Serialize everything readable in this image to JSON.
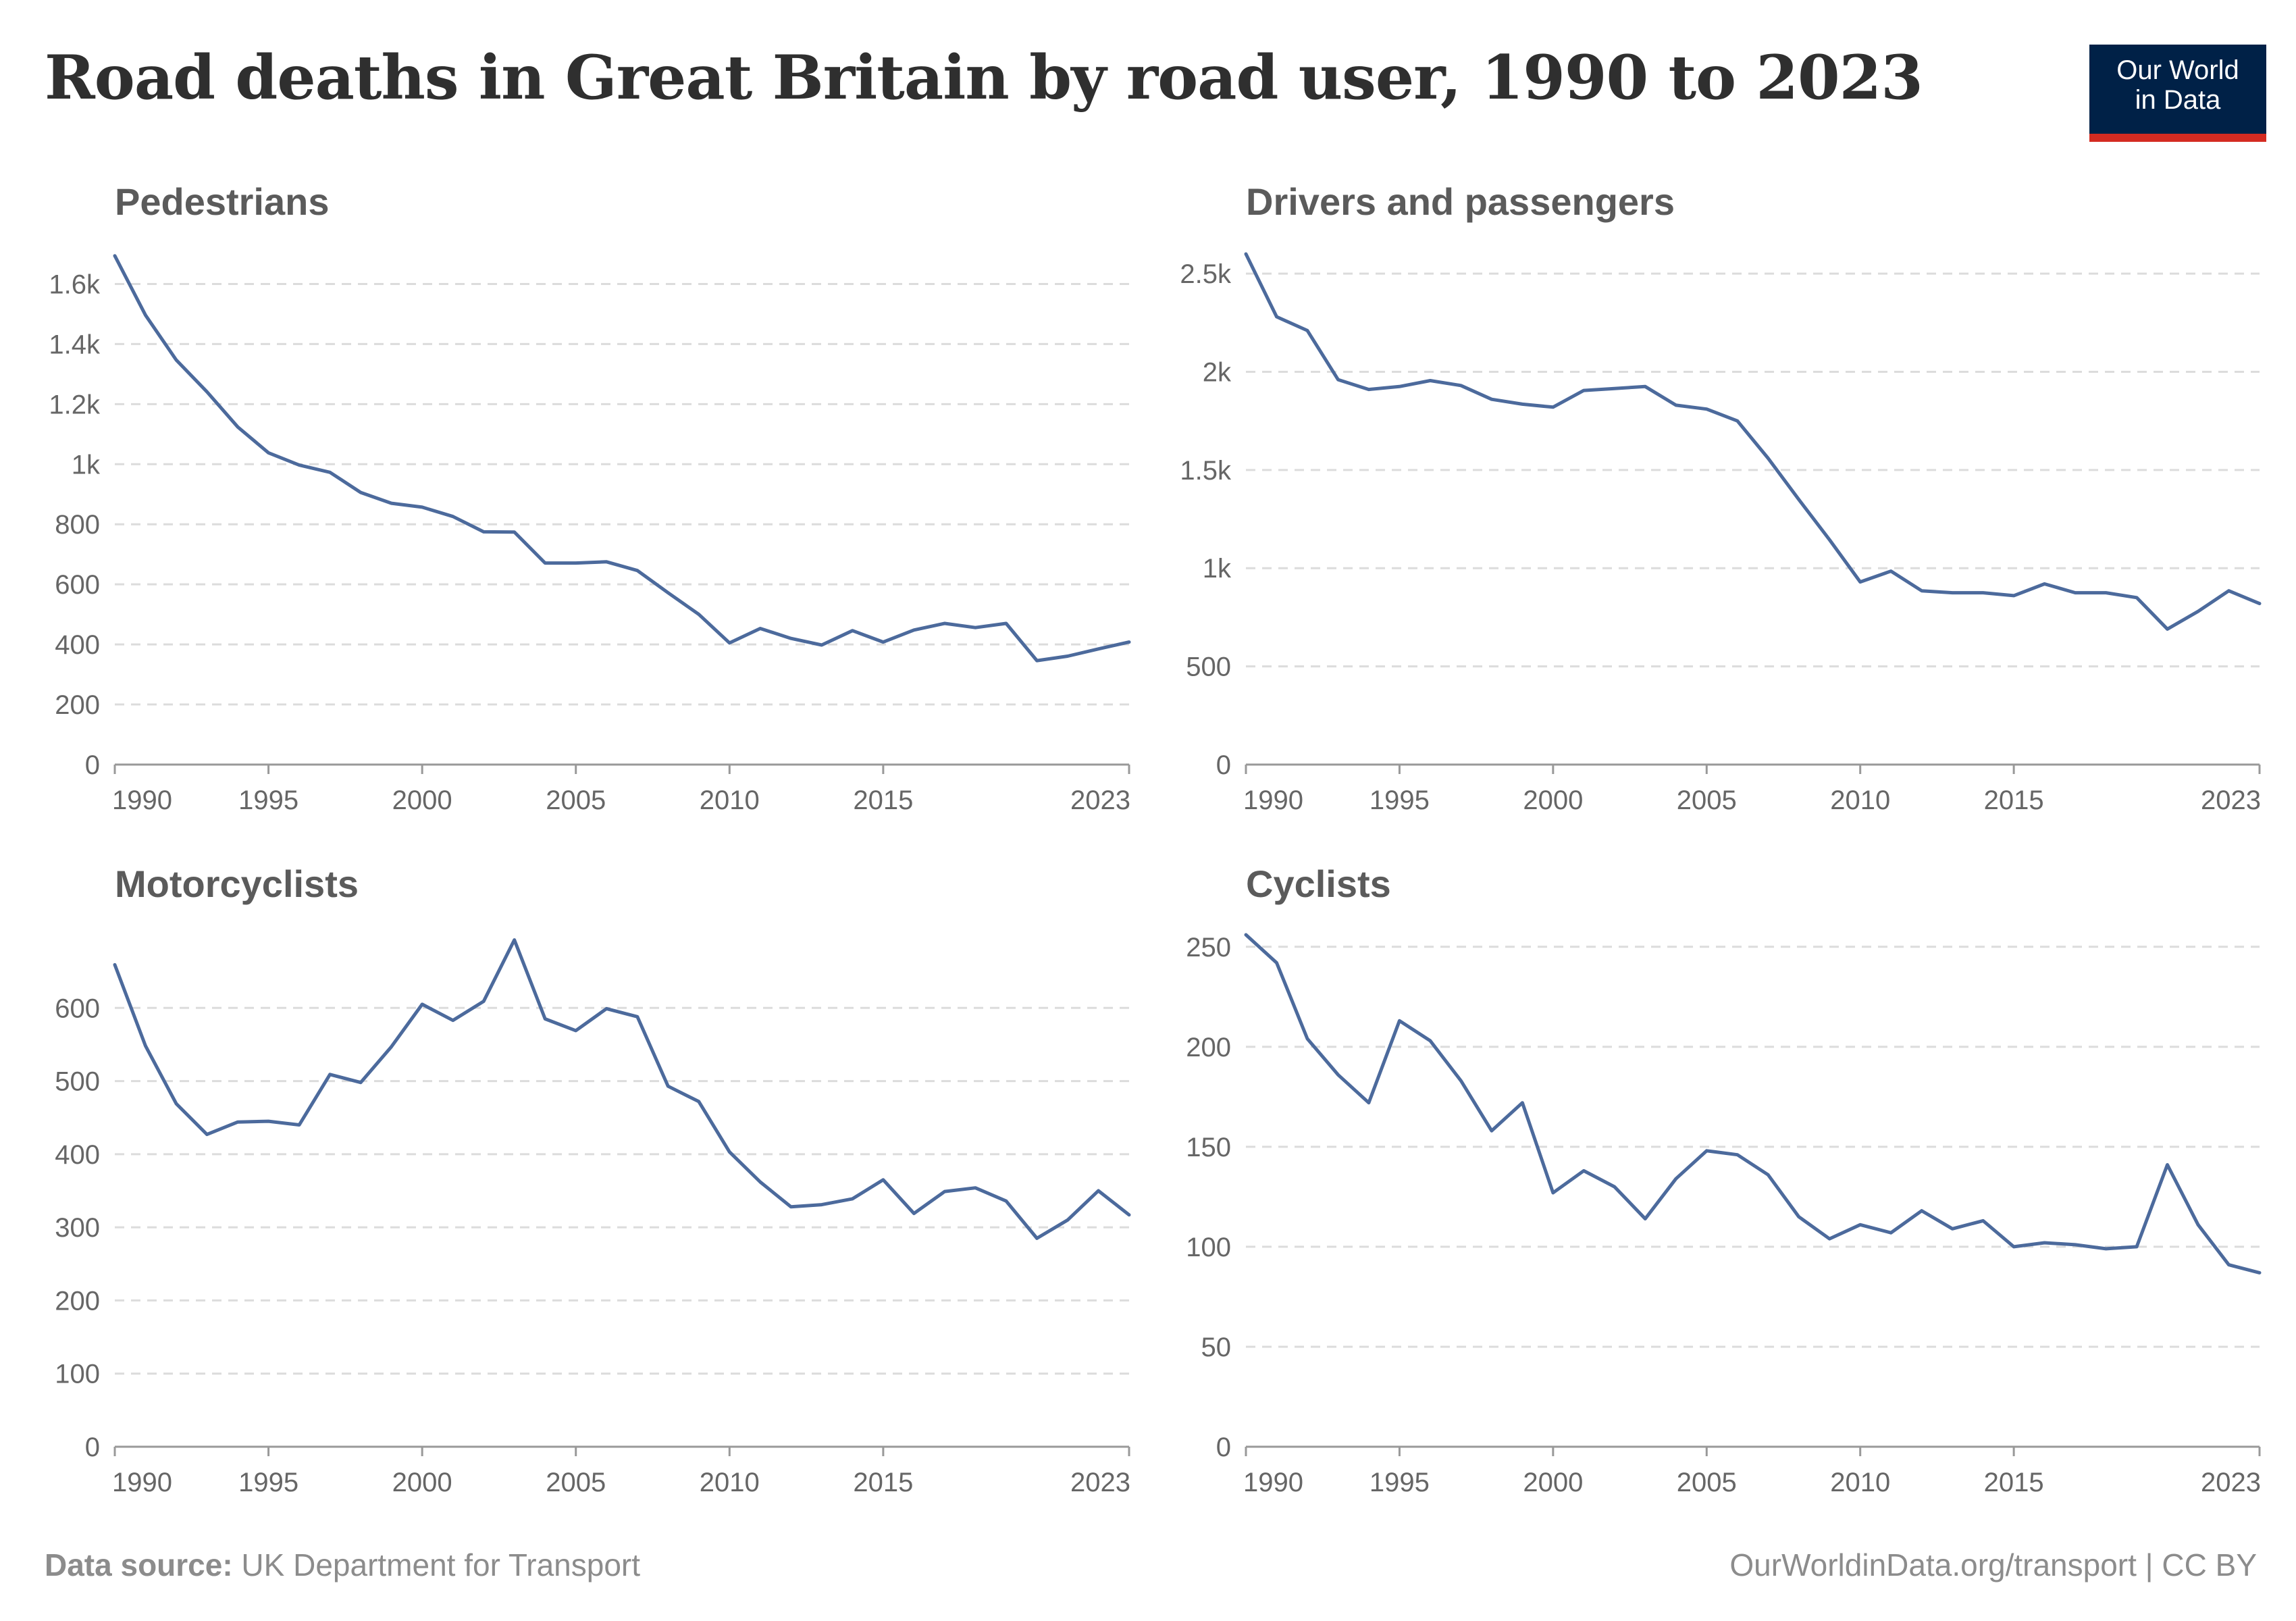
{
  "title": "Road deaths in Great Britain by road user, 1990 to 2023",
  "logo": {
    "line1": "Our World",
    "line2": "in Data",
    "bg_color": "#002147",
    "accent_color": "#d42b21"
  },
  "footer": {
    "source_label": "Data source:",
    "source_text": " UK Department for Transport",
    "right_text": "OurWorldinData.org/transport | CC BY"
  },
  "chart_data": [
    {
      "type": "line",
      "title": "Pedestrians",
      "x": [
        1990,
        1991,
        1992,
        1993,
        1994,
        1995,
        1996,
        1997,
        1998,
        1999,
        2000,
        2001,
        2002,
        2003,
        2004,
        2005,
        2006,
        2007,
        2008,
        2009,
        2010,
        2011,
        2012,
        2013,
        2014,
        2015,
        2016,
        2017,
        2018,
        2019,
        2020,
        2021,
        2022,
        2023
      ],
      "values": [
        1694,
        1496,
        1347,
        1241,
        1124,
        1038,
        997,
        973,
        906,
        870,
        857,
        826,
        775,
        774,
        671,
        671,
        675,
        646,
        572,
        500,
        405,
        453,
        420,
        398,
        446,
        408,
        448,
        470,
        456,
        470,
        346,
        361,
        385,
        408
      ],
      "ylim": [
        0,
        1700
      ],
      "yticks": [
        0,
        200,
        400,
        600,
        800,
        1000,
        1200,
        1400,
        1600
      ],
      "ytick_labels": [
        "0",
        "200",
        "400",
        "600",
        "800",
        "1k",
        "1.2k",
        "1.4k",
        "1.6k"
      ],
      "xticks": [
        1990,
        1995,
        2000,
        2005,
        2010,
        2015,
        2023
      ],
      "xtick_labels": [
        "1990",
        "1995",
        "2000",
        "2005",
        "2010",
        "2015",
        "2023"
      ],
      "line_color": "#4c6a9c"
    },
    {
      "type": "line",
      "title": "Drivers and passengers",
      "x": [
        1990,
        1991,
        1992,
        1993,
        1994,
        1995,
        1996,
        1997,
        1998,
        1999,
        2000,
        2001,
        2002,
        2003,
        2004,
        2005,
        2006,
        2007,
        2008,
        2009,
        2010,
        2011,
        2012,
        2013,
        2014,
        2015,
        2016,
        2017,
        2018,
        2019,
        2020,
        2021,
        2022,
        2023
      ],
      "values": [
        2600,
        2280,
        2210,
        1960,
        1910,
        1925,
        1955,
        1930,
        1860,
        1835,
        1820,
        1905,
        1915,
        1925,
        1830,
        1810,
        1750,
        1560,
        1350,
        1145,
        930,
        985,
        885,
        875,
        875,
        860,
        920,
        875,
        875,
        850,
        690,
        780,
        885,
        820
      ],
      "ylim": [
        0,
        2600
      ],
      "yticks": [
        0,
        500,
        1000,
        1500,
        2000,
        2500
      ],
      "ytick_labels": [
        "0",
        "500",
        "1k",
        "1.5k",
        "2k",
        "2.5k"
      ],
      "xticks": [
        1990,
        1995,
        2000,
        2005,
        2010,
        2015,
        2023
      ],
      "xtick_labels": [
        "1990",
        "1995",
        "2000",
        "2005",
        "2010",
        "2015",
        "2023"
      ],
      "line_color": "#4c6a9c"
    },
    {
      "type": "line",
      "title": "Motorcyclists",
      "x": [
        1990,
        1991,
        1992,
        1993,
        1994,
        1995,
        1996,
        1997,
        1998,
        1999,
        2000,
        2001,
        2002,
        2003,
        2004,
        2005,
        2006,
        2007,
        2008,
        2009,
        2010,
        2011,
        2012,
        2013,
        2014,
        2015,
        2016,
        2017,
        2018,
        2019,
        2020,
        2021,
        2022,
        2023
      ],
      "values": [
        659,
        548,
        469,
        427,
        444,
        445,
        440,
        509,
        498,
        547,
        605,
        583,
        609,
        693,
        585,
        569,
        599,
        588,
        493,
        472,
        403,
        362,
        328,
        331,
        339,
        365,
        319,
        349,
        354,
        336,
        285,
        310,
        350,
        317
      ],
      "ylim": [
        0,
        700
      ],
      "yticks": [
        0,
        100,
        200,
        300,
        400,
        500,
        600
      ],
      "ytick_labels": [
        "0",
        "100",
        "200",
        "300",
        "400",
        "500",
        "600"
      ],
      "xticks": [
        1990,
        1995,
        2000,
        2005,
        2010,
        2015,
        2023
      ],
      "xtick_labels": [
        "1990",
        "1995",
        "2000",
        "2005",
        "2010",
        "2015",
        "2023"
      ],
      "line_color": "#4c6a9c"
    },
    {
      "type": "line",
      "title": "Cyclists",
      "x": [
        1990,
        1991,
        1992,
        1993,
        1994,
        1995,
        1996,
        1997,
        1998,
        1999,
        2000,
        2001,
        2002,
        2003,
        2004,
        2005,
        2006,
        2007,
        2008,
        2009,
        2010,
        2011,
        2012,
        2013,
        2014,
        2015,
        2016,
        2017,
        2018,
        2019,
        2020,
        2021,
        2022,
        2023
      ],
      "values": [
        256,
        242,
        204,
        186,
        172,
        213,
        203,
        183,
        158,
        172,
        127,
        138,
        130,
        114,
        134,
        148,
        146,
        136,
        115,
        104,
        111,
        107,
        118,
        109,
        113,
        100,
        102,
        101,
        99,
        100,
        141,
        111,
        91,
        87
      ],
      "ylim": [
        0,
        256
      ],
      "yticks": [
        0,
        50,
        100,
        150,
        200,
        250
      ],
      "ytick_labels": [
        "0",
        "50",
        "100",
        "150",
        "200",
        "250"
      ],
      "xticks": [
        1990,
        1995,
        2000,
        2005,
        2010,
        2015,
        2023
      ],
      "xtick_labels": [
        "1990",
        "1995",
        "2000",
        "2005",
        "2010",
        "2015",
        "2023"
      ],
      "line_color": "#4c6a9c"
    }
  ]
}
